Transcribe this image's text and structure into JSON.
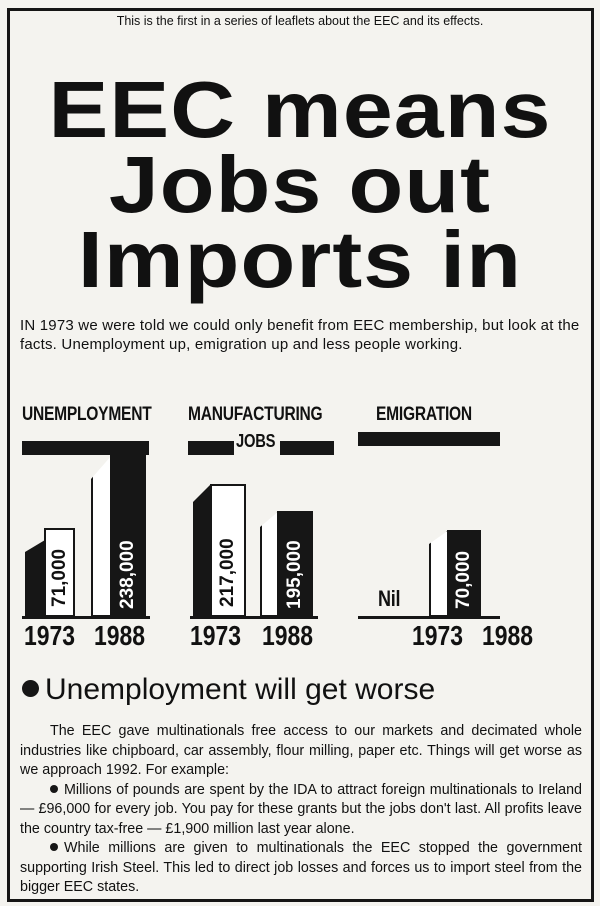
{
  "intro": "This is the first in a series of leaflets about the EEC and its effects.",
  "headline": [
    "EEC means",
    "Jobs out",
    "Imports in"
  ],
  "lead": "IN 1973 we were told we could only benefit from EEC membership, but look at the facts. Unemployment up, emigration up and less people working.",
  "charts": [
    {
      "title": "UNEMPLOYMENT",
      "years": [
        "1973",
        "1988"
      ],
      "values": [
        "71,000",
        "238,000"
      ]
    },
    {
      "title": "MANUFACTURING",
      "subtitle": "JOBS",
      "years": [
        "1973",
        "1988"
      ],
      "values": [
        "217,000",
        "195,000"
      ]
    },
    {
      "title": "EMIGRATION",
      "years": [
        "1973",
        "1988"
      ],
      "values": [
        "Nil",
        "70,000"
      ]
    }
  ],
  "section_heading": "Unemployment will get worse",
  "body": [
    "The EEC gave multinationals free access to our markets and decimated whole industries like chipboard, car assembly, flour milling, paper etc. Things will get worse as we approach 1992. For example:",
    "Millions of pounds are spent by the IDA to attract foreign multinationals to Ireland — £96,000 for every job. You pay for these grants but the jobs don't last. All profits leave the country tax-free — £1,900 million last year alone.",
    "While millions are given to multinationals the EEC stopped the government supporting Irish Steel. This led to direct job losses and forces us to import steel from the bigger EEC states."
  ]
}
